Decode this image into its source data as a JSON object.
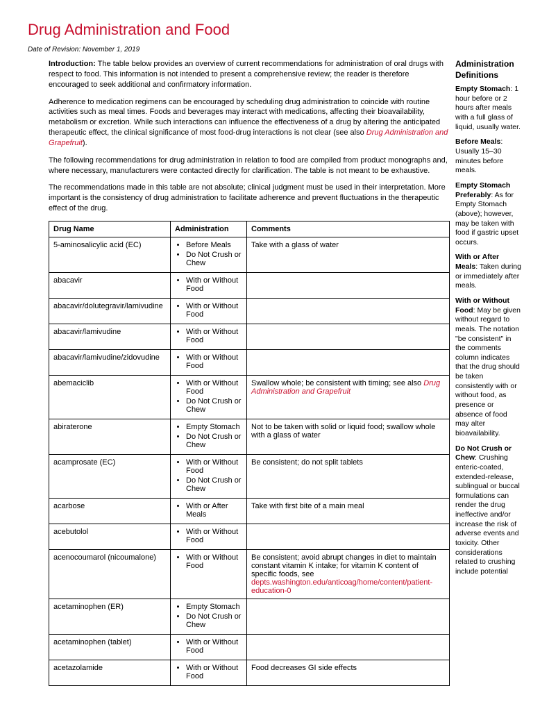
{
  "title": "Drug Administration and Food",
  "revision": "Date of Revision: November 1, 2019",
  "intro": {
    "p1_label": "Introduction:",
    "p1": " The table below provides an overview of current recommendations for administration of oral drugs with respect to food. This information is not intended to present a comprehensive review; the reader is therefore encouraged to seek additional and confirmatory information.",
    "p2a": "Adherence to medication regimens can be encouraged by scheduling drug administration to coincide with routine activities such as meal times. Foods and beverages may interact with medications, affecting their bioavailability, metabolism or excretion. While such interactions can influence the effectiveness of a drug by altering the anticipated therapeutic effect, the clinical significance of most food-drug interactions is not clear (see also ",
    "p2_link": "Drug Administration and Grapefruit",
    "p2b": ").",
    "p3": "The following recommendations for drug administration in relation to food are compiled from product monographs and, where necessary, manufacturers were contacted directly for clarification. The table is not meant to be exhaustive.",
    "p4": "The recommendations made in this table are not absolute; clinical judgment must be used in their interpretation. More important is the consistency of drug administration to facilitate adherence and prevent fluctuations in the therapeutic effect of the drug."
  },
  "table": {
    "headers": {
      "drug": "Drug Name",
      "admin": "Administration",
      "comments": "Comments"
    },
    "rows": [
      {
        "drug": "5-aminosalicylic acid (EC)",
        "admin": [
          "Before Meals",
          "Do Not Crush or Chew"
        ],
        "comment_parts": [
          {
            "t": "text",
            "v": "Take with a glass of water"
          }
        ]
      },
      {
        "drug": "abacavir",
        "admin": [
          "With or Without Food"
        ],
        "comment_parts": []
      },
      {
        "drug": "abacavir/dolutegravir/lamivudine",
        "admin": [
          "With or Without Food"
        ],
        "comment_parts": []
      },
      {
        "drug": "abacavir/lamivudine",
        "admin": [
          "With or Without Food"
        ],
        "comment_parts": []
      },
      {
        "drug": "abacavir/lamivudine/zidovudine",
        "admin": [
          "With or Without Food"
        ],
        "comment_parts": []
      },
      {
        "drug": "abemaciclib",
        "admin": [
          "With or Without Food",
          "Do Not Crush or Chew"
        ],
        "comment_parts": [
          {
            "t": "text",
            "v": "Swallow whole; be consistent with timing; see also "
          },
          {
            "t": "link-italic",
            "v": "Drug Administration and Grapefruit"
          }
        ]
      },
      {
        "drug": "abiraterone",
        "admin": [
          "Empty Stomach",
          "Do Not Crush or Chew"
        ],
        "comment_parts": [
          {
            "t": "text",
            "v": "Not to be taken with solid or liquid food; swallow whole with a glass of water"
          }
        ]
      },
      {
        "drug": "acamprosate (EC)",
        "admin": [
          "With or Without Food",
          "Do Not Crush or Chew"
        ],
        "comment_parts": [
          {
            "t": "text",
            "v": "Be consistent; do not split tablets"
          }
        ]
      },
      {
        "drug": "acarbose",
        "admin": [
          "With or After Meals"
        ],
        "comment_parts": [
          {
            "t": "text",
            "v": "Take with first bite of a main meal"
          }
        ]
      },
      {
        "drug": "acebutolol",
        "admin": [
          "With or Without Food"
        ],
        "comment_parts": []
      },
      {
        "drug": "acenocoumarol (nicoumalone)",
        "admin": [
          "With or Without Food"
        ],
        "comment_parts": [
          {
            "t": "text",
            "v": "Be consistent; avoid abrupt changes in diet to maintain constant vitamin K intake; for vitamin K content of specific foods, see "
          },
          {
            "t": "link",
            "v": "depts.washington.edu/anticoag/home/content/patient-education-0"
          }
        ]
      },
      {
        "drug": "acetaminophen (ER)",
        "admin": [
          "Empty Stomach",
          "Do Not Crush or Chew"
        ],
        "comment_parts": []
      },
      {
        "drug": "acetaminophen (tablet)",
        "admin": [
          "With or Without Food"
        ],
        "comment_parts": []
      },
      {
        "drug": "acetazolamide",
        "admin": [
          "With or Without Food"
        ],
        "comment_parts": [
          {
            "t": "text",
            "v": "Food decreases GI side effects"
          }
        ]
      }
    ]
  },
  "sidebar": {
    "heading": "Administration Definitions",
    "defs": [
      {
        "term": "Empty Stomach",
        "text": ": 1 hour before or 2 hours after meals with a full glass of liquid, usually water."
      },
      {
        "term": "Before Meals",
        "text": ": Usually 15–30 minutes before meals."
      },
      {
        "term": "Empty Stomach Preferably",
        "text": ": As for Empty Stomach (above); however, may be taken with food if gastric upset occurs."
      },
      {
        "term": "With or After Meals",
        "text": ": Taken during or immediately after meals."
      },
      {
        "term": "With or Without Food",
        "text": ": May be given without regard to meals. The notation \"be consistent\" in the comments column indicates that the drug should be taken consistently with or without food, as presence or absence of food may alter bioavailability."
      },
      {
        "term": "Do Not Crush or Chew",
        "text": ": Crushing enteric-coated, extended-release, sublingual or buccal formulations can render the drug ineffective and/or increase the risk of adverse events and toxicity. Other considerations related to crushing include potential"
      }
    ]
  }
}
